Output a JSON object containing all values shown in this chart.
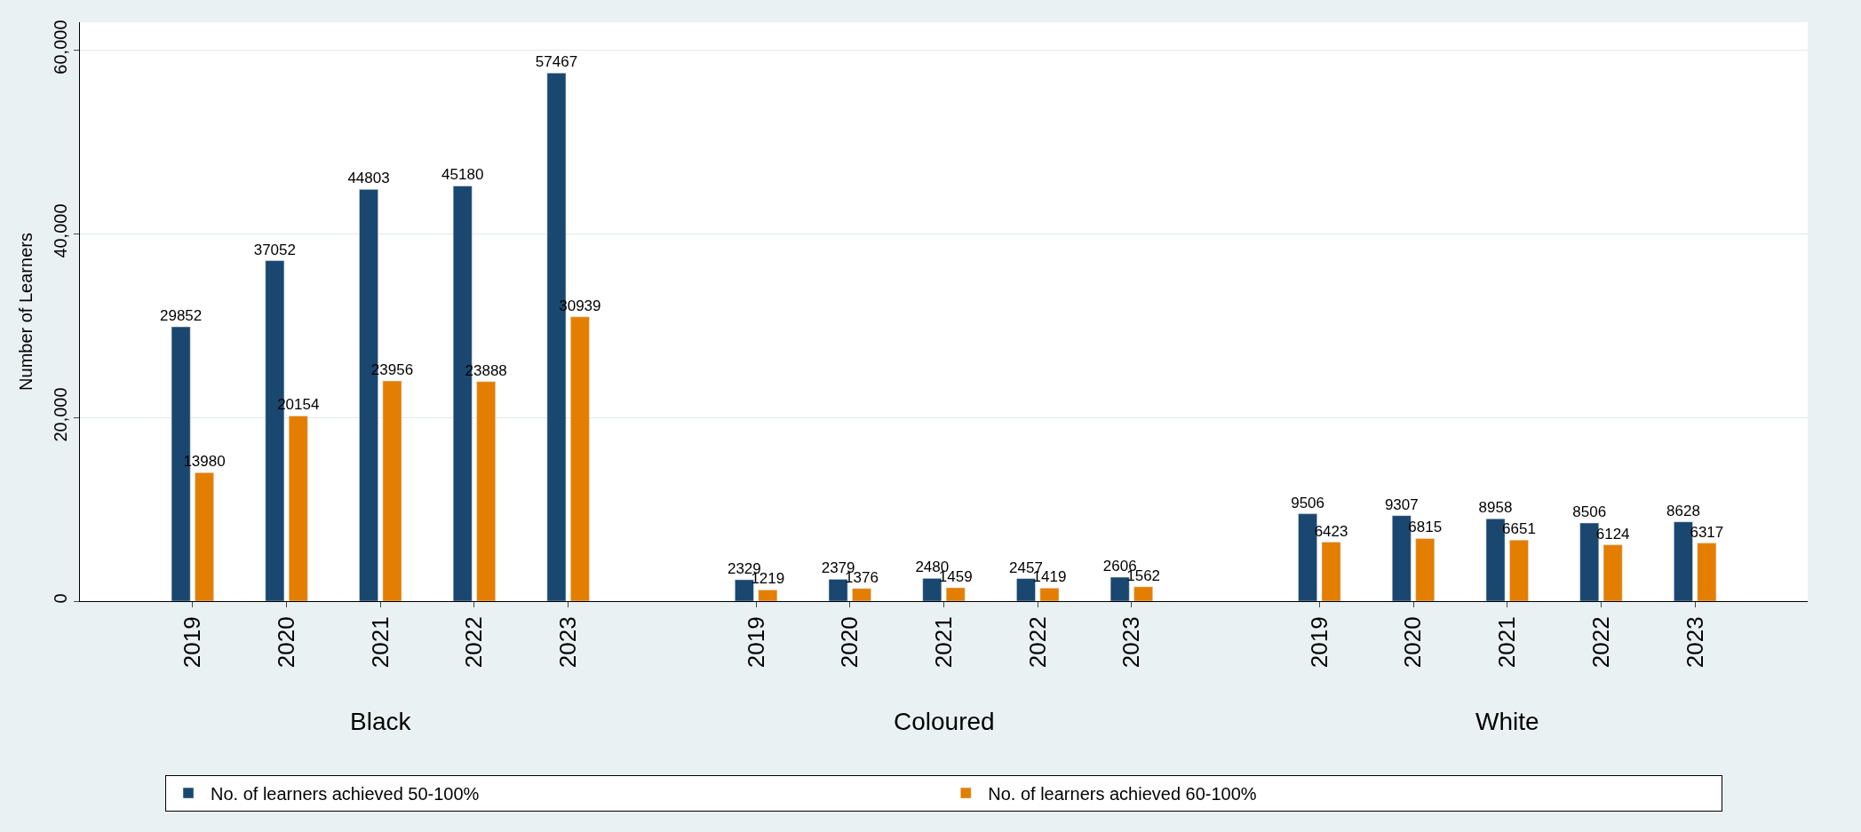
{
  "chart_data": {
    "type": "bar",
    "ylabel": "Number of Learners",
    "categories": [
      "2019",
      "2020",
      "2021",
      "2022",
      "2023",
      "2019",
      "2020",
      "2021",
      "2022",
      "2023",
      "2019",
      "2020",
      "2021",
      "2022",
      "2023"
    ],
    "series": [
      {
        "name": "No. of learners achieved 50-100%",
        "color": "#1a476f",
        "values": [
          29852,
          37052,
          44803,
          45180,
          57467,
          2329,
          2379,
          2480,
          2457,
          2606,
          9506,
          9307,
          8958,
          8506,
          8628
        ]
      },
      {
        "name": "No. of learners achieved 60-100%",
        "color": "#e37e00",
        "values": [
          13980,
          20154,
          23956,
          23888,
          30939,
          1219,
          1376,
          1459,
          1419,
          1562,
          6423,
          6815,
          6651,
          6124,
          6317
        ]
      }
    ],
    "annotations": [
      "Black",
      "Coloured",
      "White"
    ],
    "ylim": [
      0,
      63000
    ],
    "yticks": [
      0,
      {
        "value": 20000,
        "label": "20,000"
      },
      {
        "value": 40000,
        "label": "40,000"
      },
      {
        "value": 60000,
        "label": "60,000"
      }
    ],
    "data_labels": true,
    "grid": "y",
    "legend": "bottom"
  }
}
